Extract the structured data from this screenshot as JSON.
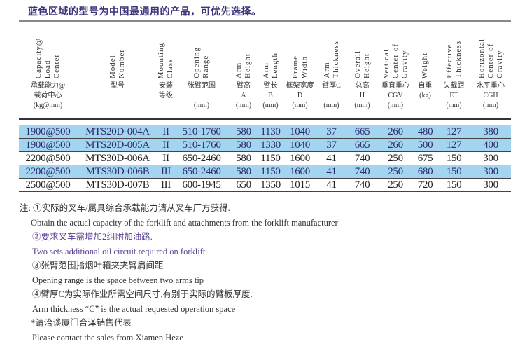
{
  "title": "蓝色区域的型号为中国最通用的产品，可优先选择。",
  "colors": {
    "highlight_row": "#a3d5f0",
    "highlight_text": "#2f2c6e",
    "title": "#3a3478",
    "note_purple": "#5a3f92"
  },
  "columns": [
    {
      "en": "Capacity@\nLoad\nCenter",
      "cn": "承载能力@\n载荷中心\n(kg@mm)"
    },
    {
      "en": "Model\nNumber",
      "cn": "型号"
    },
    {
      "en": "Mounting\nClass",
      "cn": "安装\n等级"
    },
    {
      "en": "Opening\nRange",
      "cn": "张臂范围\n\n(mm)"
    },
    {
      "en": "Arm\nHeight",
      "cn": "臂高\nA\n(mm)"
    },
    {
      "en": "Arm\nLength",
      "cn": "臂长\nB\n(mm)"
    },
    {
      "en": "Frame\nWidth",
      "cn": "框架宽度\nD\n(mm)"
    },
    {
      "en": "Arm\nThickness",
      "cn": "臂厚C\n\n(mm)"
    },
    {
      "en": "Overall\nHeight",
      "cn": "总高\nH\n(mm)"
    },
    {
      "en": "Vertical\nCenter of\nGravity",
      "cn": "垂直重心\nCGV\n(mm)"
    },
    {
      "en": "Weight",
      "cn": "自重\n(kg)"
    },
    {
      "en": "Effective\nThickness",
      "cn": "失载距\nET\n(mm)"
    },
    {
      "en": "Horizontal\nCenter of\nGravity",
      "cn": "水平重心\nCGH\n(mm)"
    }
  ],
  "rows": [
    {
      "highlight": true,
      "cells": [
        "1900@500",
        "MTS20D-004A",
        "II",
        "510-1760",
        "580",
        "1130",
        "1040",
        "37",
        "665",
        "260",
        "480",
        "127",
        "380"
      ]
    },
    {
      "highlight": true,
      "cells": [
        "1900@500",
        "MTS20D-005A",
        "II",
        "510-1760",
        "580",
        "1330",
        "1040",
        "37",
        "665",
        "260",
        "500",
        "127",
        "400"
      ]
    },
    {
      "highlight": false,
      "cells": [
        "2200@500",
        "MTS30D-006A",
        "II",
        "650-2460",
        "580",
        "1150",
        "1600",
        "41",
        "740",
        "250",
        "675",
        "150",
        "300"
      ]
    },
    {
      "highlight": true,
      "cells": [
        "2200@500",
        "MTS30D-006B",
        "III",
        "650-2460",
        "580",
        "1150",
        "1600",
        "41",
        "740",
        "250",
        "680",
        "150",
        "300"
      ]
    },
    {
      "highlight": false,
      "cells": [
        "2500@500",
        "MTS30D-007B",
        "III",
        "600-1945",
        "650",
        "1350",
        "1015",
        "41",
        "740",
        "250",
        "720",
        "150",
        "300"
      ]
    }
  ],
  "notes": [
    {
      "text": "注: ①实际的叉车/属具综合承载能力请从叉车厂方获得.",
      "style": "",
      "indent": ""
    },
    {
      "text": "Obtain the actual capacity of the forklift and attachments from the forklift manufacturer",
      "style": "",
      "indent": "ind"
    },
    {
      "text": "②要求叉车需增加2组附加油路.",
      "style": "purple",
      "indent": "ind2"
    },
    {
      "text": "Two sets additional oil circuit required on forklift",
      "style": "purple",
      "indent": "ind2"
    },
    {
      "text": "③张臂范围指烟叶箱夹夹臂肩间距",
      "style": "",
      "indent": "ind2"
    },
    {
      "text": "Opening range is the space between two arms tip",
      "style": "",
      "indent": "ind2"
    },
    {
      "text": "④臂厚C为实际作业所需空间尺寸,有别于实际的臂板厚度.",
      "style": "",
      "indent": "ind2"
    },
    {
      "text": "Arm thickness “C” is the actual requested operation space",
      "style": "",
      "indent": "ind2"
    },
    {
      "text": "*请洽谈厦门合泽销售代表",
      "style": "",
      "indent": "ind"
    },
    {
      "text": "Please contact the sales from Xiamen Heze",
      "style": "",
      "indent": "ind2"
    }
  ]
}
